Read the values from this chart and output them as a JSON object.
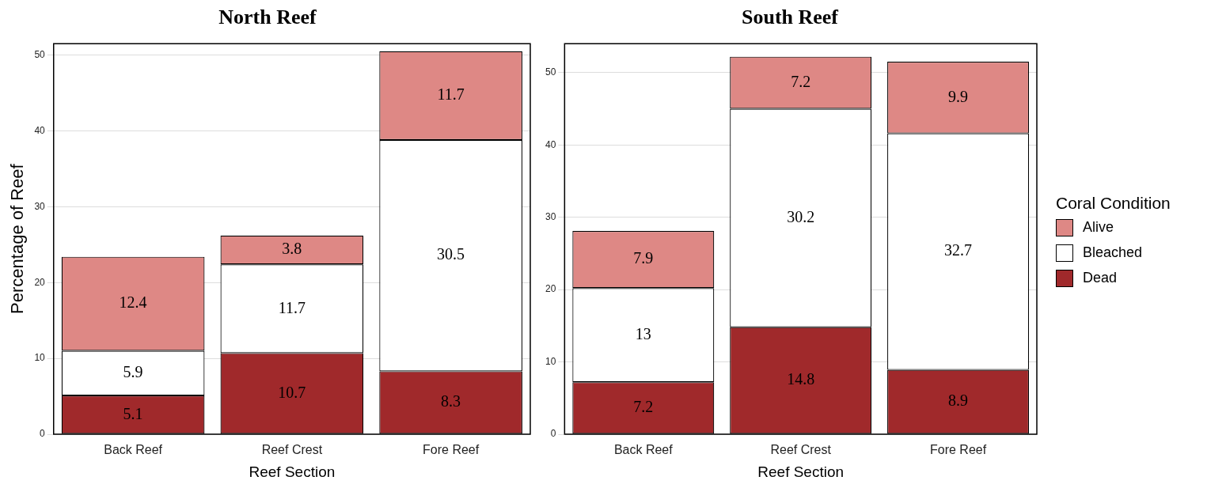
{
  "chart_data": [
    {
      "type": "bar",
      "title": "North Reef",
      "xlabel": "Reef Section",
      "ylabel": "Percentage of Reef",
      "categories": [
        "Back Reef",
        "Reef Crest",
        "Fore Reef"
      ],
      "stacked": true,
      "data_labels": true,
      "grid": "y",
      "legend": false,
      "ylim": [
        0,
        51.5
      ],
      "yticks": [
        0,
        10,
        20,
        30,
        40,
        50
      ],
      "series": [
        {
          "color": "#a0292b",
          "values": [
            5.1,
            10.7,
            8.3
          ]
        },
        {
          "color": "#ffffff",
          "values": [
            5.9,
            11.7,
            30.5
          ]
        },
        {
          "color": "#de8885",
          "values": [
            12.4,
            3.8,
            11.7
          ]
        }
      ]
    },
    {
      "type": "bar",
      "title": "South Reef",
      "xlabel": "Reef Section",
      "legend_title": "Coral Condition",
      "categories": [
        "Back Reef",
        "Reef Crest",
        "Fore Reef"
      ],
      "stacked": true,
      "data_labels": true,
      "grid": "y",
      "legend": "right",
      "ylim": [
        0,
        54
      ],
      "yticks": [
        0,
        10,
        20,
        30,
        40,
        50
      ],
      "series": [
        {
          "name": "Dead",
          "color": "#a0292b",
          "values": [
            7.2,
            14.8,
            8.9
          ]
        },
        {
          "name": "Bleached",
          "color": "#ffffff",
          "values": [
            13,
            30.2,
            32.7
          ]
        },
        {
          "name": "Alive",
          "color": "#de8885",
          "values": [
            7.9,
            7.2,
            9.9
          ]
        }
      ]
    }
  ]
}
